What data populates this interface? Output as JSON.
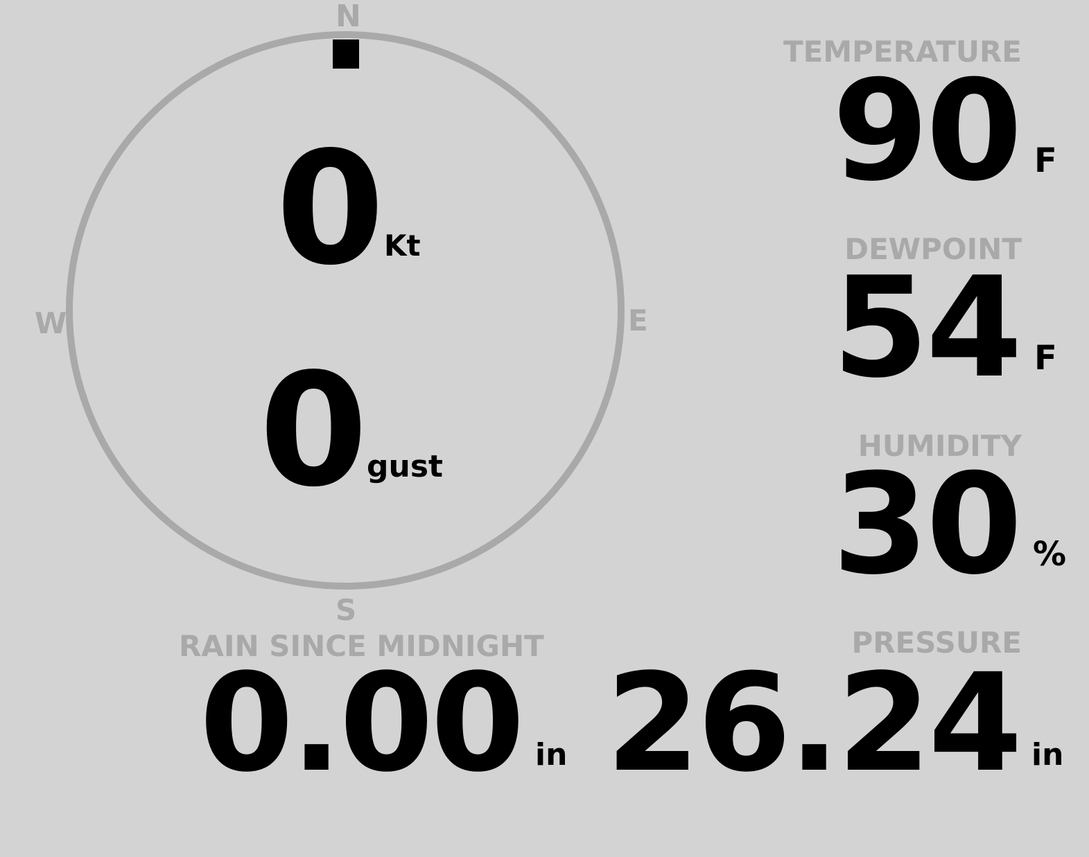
{
  "colors": {
    "background": "#d3d3d3",
    "muted": "#a9a9a9",
    "text": "#000000"
  },
  "wind": {
    "compass": {
      "n": "N",
      "e": "E",
      "s": "S",
      "w": "W"
    },
    "direction_deg": 0,
    "speed": "0",
    "speed_unit": "Kt",
    "gust": "0",
    "gust_unit": "gust"
  },
  "temperature": {
    "label": "TEMPERATURE",
    "value": "90",
    "unit": "F"
  },
  "dewpoint": {
    "label": "DEWPOINT",
    "value": "54",
    "unit": "F"
  },
  "humidity": {
    "label": "HUMIDITY",
    "value": "30",
    "unit": "%"
  },
  "rain": {
    "label": "RAIN SINCE MIDNIGHT",
    "value": "0.00",
    "unit": "in"
  },
  "pressure": {
    "label": "PRESSURE",
    "value": "26.24",
    "unit": "in"
  }
}
